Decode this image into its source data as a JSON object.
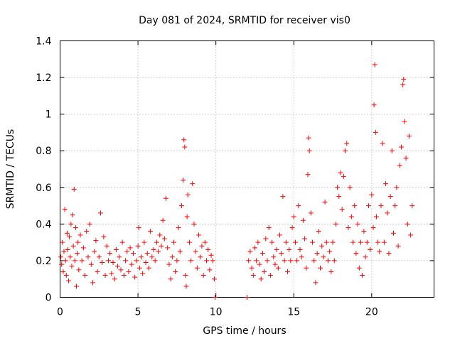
{
  "chart_data": {
    "type": "scatter",
    "title": "Day 081 of 2024, SRMTID for receiver vis0",
    "xlabel": "GPS time / hours",
    "ylabel": "SRMTID / TECUs",
    "xlim": [
      0,
      24
    ],
    "ylim": [
      0,
      1.4
    ],
    "xticks": [
      0,
      5,
      10,
      15,
      20
    ],
    "xtick_labels": [
      "0",
      "5",
      "10",
      "15",
      "20"
    ],
    "yticks": [
      0,
      0.2,
      0.4,
      0.6,
      0.8,
      1.0,
      1.2,
      1.4
    ],
    "ytick_labels": [
      "0",
      "0.2",
      "0.4",
      "0.6",
      "0.8",
      "1",
      "1.2",
      "1.4"
    ],
    "grid": true,
    "marker": "+",
    "color": "#ff0000",
    "series": [
      {
        "name": "vis0",
        "points": [
          [
            0.05,
            0.22
          ],
          [
            0.1,
            0.18
          ],
          [
            0.15,
            0.3
          ],
          [
            0.2,
            0.14
          ],
          [
            0.25,
            0.25
          ],
          [
            0.3,
            0.48
          ],
          [
            0.35,
            0.2
          ],
          [
            0.4,
            0.12
          ],
          [
            0.45,
            0.35
          ],
          [
            0.5,
            0.26
          ],
          [
            0.55,
            0.09
          ],
          [
            0.6,
            0.33
          ],
          [
            0.65,
            0.22
          ],
          [
            0.7,
            0.4
          ],
          [
            0.75,
            0.17
          ],
          [
            0.8,
            0.45
          ],
          [
            0.85,
            0.28
          ],
          [
            0.9,
            0.59
          ],
          [
            0.95,
            0.2
          ],
          [
            1.0,
            0.38
          ],
          [
            1.05,
            0.06
          ],
          [
            1.1,
            0.24
          ],
          [
            1.15,
            0.3
          ],
          [
            1.2,
            0.15
          ],
          [
            1.3,
            0.34
          ],
          [
            1.4,
            0.2
          ],
          [
            1.5,
            0.27
          ],
          [
            1.6,
            0.12
          ],
          [
            1.7,
            0.36
          ],
          [
            1.8,
            0.22
          ],
          [
            1.9,
            0.4
          ],
          [
            2.0,
            0.18
          ],
          [
            2.1,
            0.08
          ],
          [
            2.2,
            0.25
          ],
          [
            2.3,
            0.31
          ],
          [
            2.4,
            0.14
          ],
          [
            2.5,
            0.22
          ],
          [
            2.6,
            0.46
          ],
          [
            2.7,
            0.19
          ],
          [
            2.8,
            0.33
          ],
          [
            2.9,
            0.12
          ],
          [
            3.0,
            0.28
          ],
          [
            3.1,
            0.2
          ],
          [
            3.2,
            0.24
          ],
          [
            3.3,
            0.13
          ],
          [
            3.4,
            0.19
          ],
          [
            3.5,
            0.1
          ],
          [
            3.6,
            0.26
          ],
          [
            3.7,
            0.17
          ],
          [
            3.8,
            0.22
          ],
          [
            3.9,
            0.15
          ],
          [
            4.0,
            0.3
          ],
          [
            4.1,
            0.12
          ],
          [
            4.2,
            0.2
          ],
          [
            4.3,
            0.25
          ],
          [
            4.4,
            0.14
          ],
          [
            4.5,
            0.27
          ],
          [
            4.6,
            0.18
          ],
          [
            4.7,
            0.24
          ],
          [
            4.8,
            0.11
          ],
          [
            4.9,
            0.2
          ],
          [
            5.0,
            0.28
          ],
          [
            5.05,
            0.38
          ],
          [
            5.1,
            0.16
          ],
          [
            5.2,
            0.22
          ],
          [
            5.3,
            0.13
          ],
          [
            5.4,
            0.3
          ],
          [
            5.5,
            0.19
          ],
          [
            5.6,
            0.24
          ],
          [
            5.7,
            0.16
          ],
          [
            5.8,
            0.36
          ],
          [
            5.9,
            0.22
          ],
          [
            6.0,
            0.26
          ],
          [
            6.1,
            0.2
          ],
          [
            6.2,
            0.3
          ],
          [
            6.3,
            0.25
          ],
          [
            6.4,
            0.34
          ],
          [
            6.5,
            0.28
          ],
          [
            6.6,
            0.42
          ],
          [
            6.7,
            0.32
          ],
          [
            6.8,
            0.54
          ],
          [
            6.9,
            0.27
          ],
          [
            7.0,
            0.18
          ],
          [
            7.1,
            0.1
          ],
          [
            7.2,
            0.22
          ],
          [
            7.3,
            0.3
          ],
          [
            7.4,
            0.14
          ],
          [
            7.5,
            0.2
          ],
          [
            7.6,
            0.38
          ],
          [
            7.7,
            0.25
          ],
          [
            7.8,
            0.5
          ],
          [
            7.9,
            0.64
          ],
          [
            7.95,
            0.86
          ],
          [
            8.0,
            0.82
          ],
          [
            8.05,
            0.12
          ],
          [
            8.1,
            0.06
          ],
          [
            8.15,
            0.44
          ],
          [
            8.2,
            0.56
          ],
          [
            8.3,
            0.3
          ],
          [
            8.4,
            0.2
          ],
          [
            8.5,
            0.62
          ],
          [
            8.6,
            0.4
          ],
          [
            8.7,
            0.25
          ],
          [
            8.8,
            0.16
          ],
          [
            8.9,
            0.34
          ],
          [
            9.0,
            0.22
          ],
          [
            9.1,
            0.28
          ],
          [
            9.2,
            0.12
          ],
          [
            9.3,
            0.3
          ],
          [
            9.4,
            0.2
          ],
          [
            9.5,
            0.26
          ],
          [
            9.6,
            0.15
          ],
          [
            9.7,
            0.23
          ],
          [
            9.8,
            0.2
          ],
          [
            9.9,
            0.1
          ],
          [
            9.95,
            0.0
          ],
          [
            12.0,
            0.0
          ],
          [
            12.1,
            0.2
          ],
          [
            12.2,
            0.25
          ],
          [
            12.3,
            0.16
          ],
          [
            12.4,
            0.12
          ],
          [
            12.5,
            0.27
          ],
          [
            12.6,
            0.2
          ],
          [
            12.7,
            0.3
          ],
          [
            12.8,
            0.18
          ],
          [
            12.9,
            0.1
          ],
          [
            13.0,
            0.24
          ],
          [
            13.1,
            0.14
          ],
          [
            13.2,
            0.32
          ],
          [
            13.3,
            0.2
          ],
          [
            13.4,
            0.38
          ],
          [
            13.5,
            0.12
          ],
          [
            13.6,
            0.3
          ],
          [
            13.7,
            0.22
          ],
          [
            13.8,
            0.18
          ],
          [
            13.9,
            0.26
          ],
          [
            14.0,
            0.16
          ],
          [
            14.1,
            0.34
          ],
          [
            14.2,
            0.24
          ],
          [
            14.3,
            0.55
          ],
          [
            14.4,
            0.2
          ],
          [
            14.5,
            0.3
          ],
          [
            14.6,
            0.14
          ],
          [
            14.7,
            0.26
          ],
          [
            14.8,
            0.2
          ],
          [
            14.9,
            0.38
          ],
          [
            15.0,
            0.44
          ],
          [
            15.1,
            0.3
          ],
          [
            15.2,
            0.2
          ],
          [
            15.3,
            0.5
          ],
          [
            15.4,
            0.26
          ],
          [
            15.5,
            0.22
          ],
          [
            15.6,
            0.42
          ],
          [
            15.7,
            0.32
          ],
          [
            15.8,
            0.16
          ],
          [
            15.9,
            0.67
          ],
          [
            15.95,
            0.87
          ],
          [
            16.0,
            0.8
          ],
          [
            16.1,
            0.46
          ],
          [
            16.2,
            0.3
          ],
          [
            16.3,
            0.2
          ],
          [
            16.4,
            0.08
          ],
          [
            16.5,
            0.24
          ],
          [
            16.6,
            0.36
          ],
          [
            16.7,
            0.16
          ],
          [
            16.8,
            0.28
          ],
          [
            16.9,
            0.22
          ],
          [
            17.0,
            0.52
          ],
          [
            17.1,
            0.3
          ],
          [
            17.2,
            0.2
          ],
          [
            17.3,
            0.25
          ],
          [
            17.4,
            0.14
          ],
          [
            17.5,
            0.3
          ],
          [
            17.6,
            0.2
          ],
          [
            17.7,
            0.4
          ],
          [
            17.8,
            0.6
          ],
          [
            17.9,
            0.55
          ],
          [
            18.0,
            0.68
          ],
          [
            18.1,
            0.48
          ],
          [
            18.2,
            0.66
          ],
          [
            18.3,
            0.8
          ],
          [
            18.4,
            0.84
          ],
          [
            18.5,
            0.38
          ],
          [
            18.6,
            0.6
          ],
          [
            18.7,
            0.44
          ],
          [
            18.8,
            0.3
          ],
          [
            18.9,
            0.5
          ],
          [
            19.0,
            0.24
          ],
          [
            19.1,
            0.4
          ],
          [
            19.2,
            0.16
          ],
          [
            19.3,
            0.3
          ],
          [
            19.4,
            0.12
          ],
          [
            19.5,
            0.36
          ],
          [
            19.6,
            0.22
          ],
          [
            19.7,
            0.3
          ],
          [
            19.8,
            0.5
          ],
          [
            19.9,
            0.26
          ],
          [
            20.0,
            0.56
          ],
          [
            20.1,
            0.38
          ],
          [
            20.15,
            1.05
          ],
          [
            20.2,
            1.27
          ],
          [
            20.25,
            0.9
          ],
          [
            20.3,
            0.44
          ],
          [
            20.4,
            0.3
          ],
          [
            20.5,
            0.25
          ],
          [
            20.6,
            0.5
          ],
          [
            20.7,
            0.84
          ],
          [
            20.8,
            0.3
          ],
          [
            20.9,
            0.62
          ],
          [
            21.0,
            0.46
          ],
          [
            21.1,
            0.24
          ],
          [
            21.2,
            0.55
          ],
          [
            21.3,
            0.8
          ],
          [
            21.4,
            0.35
          ],
          [
            21.5,
            0.5
          ],
          [
            21.6,
            0.6
          ],
          [
            21.7,
            0.28
          ],
          [
            21.8,
            0.72
          ],
          [
            21.9,
            0.82
          ],
          [
            22.0,
            1.16
          ],
          [
            22.05,
            1.19
          ],
          [
            22.1,
            0.96
          ],
          [
            22.2,
            0.76
          ],
          [
            22.3,
            0.4
          ],
          [
            22.4,
            0.88
          ],
          [
            22.5,
            0.34
          ],
          [
            22.6,
            0.5
          ]
        ]
      }
    ]
  }
}
